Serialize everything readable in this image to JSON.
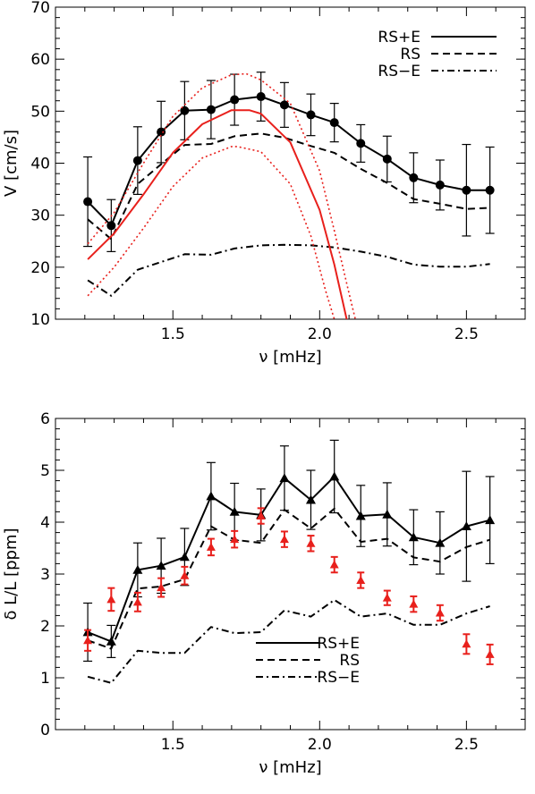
{
  "chart_data": [
    {
      "type": "line",
      "xlabel": "ν [mHz]",
      "ylabel": "V [cm/s]",
      "xlim": [
        1.1,
        2.7
      ],
      "ylim": [
        10,
        70
      ],
      "xticks": [
        "1.5",
        "2.0",
        "2.5"
      ],
      "yticks": [
        "10",
        "20",
        "30",
        "40",
        "50",
        "60",
        "70"
      ],
      "legend": {
        "placement": "top-right",
        "entries": [
          "RS+E",
          "RS",
          "RS−E"
        ]
      },
      "series": [
        {
          "name": "RS+E",
          "style": "solid",
          "marker": "circle",
          "color": "#000000",
          "x": [
            1.21,
            1.29,
            1.38,
            1.46,
            1.54,
            1.63,
            1.71,
            1.8,
            1.88,
            1.97,
            2.05,
            2.14,
            2.23,
            2.32,
            2.41,
            2.5,
            2.58
          ],
          "y": [
            32.6,
            28.0,
            40.5,
            46.0,
            50.1,
            50.3,
            52.2,
            52.8,
            51.2,
            49.3,
            47.8,
            43.8,
            40.8,
            37.2,
            35.8,
            34.8,
            34.8
          ],
          "err": [
            8.6,
            5.0,
            6.5,
            5.9,
            5.6,
            5.6,
            4.9,
            4.7,
            4.3,
            4.0,
            3.7,
            3.6,
            4.4,
            4.8,
            4.8,
            8.8,
            8.3
          ]
        },
        {
          "name": "RS",
          "style": "dashed",
          "color": "#000000",
          "x": [
            1.21,
            1.29,
            1.38,
            1.46,
            1.54,
            1.63,
            1.71,
            1.8,
            1.88,
            1.97,
            2.05,
            2.14,
            2.23,
            2.32,
            2.41,
            2.5,
            2.58
          ],
          "y": [
            29.2,
            25.4,
            36.0,
            39.8,
            43.5,
            43.7,
            45.2,
            45.7,
            44.9,
            43.3,
            42.0,
            38.9,
            36.2,
            33.1,
            32.2,
            31.2,
            31.4
          ]
        },
        {
          "name": "RS−E",
          "style": "dashdot",
          "color": "#000000",
          "x": [
            1.21,
            1.29,
            1.38,
            1.46,
            1.54,
            1.63,
            1.71,
            1.8,
            1.88,
            1.97,
            2.05,
            2.14,
            2.23,
            2.32,
            2.41,
            2.5,
            2.58
          ],
          "y": [
            17.5,
            14.5,
            19.5,
            21.0,
            22.5,
            22.4,
            23.6,
            24.2,
            24.3,
            24.2,
            23.8,
            23.0,
            22.0,
            20.5,
            20.1,
            20.1,
            20.6
          ]
        },
        {
          "style": "solid",
          "color": "#e8201c",
          "x": [
            1.21,
            1.3,
            1.4,
            1.5,
            1.6,
            1.7,
            1.76,
            1.8,
            1.9,
            2.0,
            2.05,
            2.08,
            2.1
          ],
          "y": [
            21.5,
            26.5,
            34.0,
            42.0,
            47.5,
            50.2,
            50.2,
            49.5,
            44.0,
            31.0,
            20.5,
            13.0,
            8.0
          ]
        },
        {
          "style": "dotted",
          "color": "#e8201c",
          "x": [
            1.21,
            1.3,
            1.4,
            1.5,
            1.6,
            1.7,
            1.75,
            1.8,
            1.9,
            2.0,
            2.05,
            2.1,
            2.13
          ],
          "y": [
            24.5,
            30.5,
            40.0,
            49.0,
            54.5,
            57.0,
            57.2,
            56.0,
            51.5,
            38.5,
            27.0,
            15.0,
            8.0
          ]
        },
        {
          "style": "dotted",
          "color": "#e8201c",
          "x": [
            1.21,
            1.3,
            1.4,
            1.5,
            1.6,
            1.7,
            1.72,
            1.8,
            1.9,
            1.97,
            2.02,
            2.05,
            2.08
          ],
          "y": [
            14.5,
            20.0,
            27.5,
            35.5,
            41.0,
            43.2,
            43.2,
            42.2,
            36.0,
            26.0,
            15.5,
            10.0,
            5.0
          ]
        }
      ]
    },
    {
      "type": "line",
      "xlabel": "ν [mHz]",
      "ylabel": "δ L/L [ppm]",
      "xlim": [
        1.1,
        2.7
      ],
      "ylim": [
        0,
        6
      ],
      "xticks": [
        "1.5",
        "2.0",
        "2.5"
      ],
      "yticks": [
        "0",
        "1",
        "2",
        "3",
        "4",
        "5",
        "6"
      ],
      "legend": {
        "placement": "bottom-center",
        "entries": [
          "RS+E",
          "RS",
          "RS−E"
        ]
      },
      "series": [
        {
          "name": "RS+E",
          "style": "solid",
          "marker": "triangle",
          "color": "#000000",
          "x": [
            1.21,
            1.29,
            1.38,
            1.46,
            1.54,
            1.63,
            1.71,
            1.8,
            1.88,
            1.97,
            2.05,
            2.14,
            2.23,
            2.32,
            2.41,
            2.5,
            2.58
          ],
          "y": [
            1.88,
            1.7,
            3.08,
            3.16,
            3.33,
            4.5,
            4.2,
            4.14,
            4.85,
            4.43,
            4.88,
            4.12,
            4.15,
            3.71,
            3.6,
            3.92,
            4.04
          ],
          "err": [
            0.56,
            0.31,
            0.52,
            0.53,
            0.55,
            0.65,
            0.55,
            0.5,
            0.62,
            0.57,
            0.7,
            0.59,
            0.61,
            0.53,
            0.6,
            1.06,
            0.84
          ]
        },
        {
          "name": "RS",
          "style": "dashed",
          "color": "#000000",
          "x": [
            1.21,
            1.29,
            1.38,
            1.46,
            1.54,
            1.63,
            1.71,
            1.8,
            1.88,
            1.97,
            2.05,
            2.14,
            2.23,
            2.32,
            2.41,
            2.5,
            2.58
          ],
          "y": [
            1.72,
            1.56,
            2.72,
            2.76,
            2.9,
            3.92,
            3.66,
            3.6,
            4.24,
            3.88,
            4.26,
            3.62,
            3.68,
            3.32,
            3.24,
            3.52,
            3.66
          ]
        },
        {
          "name": "RS−E",
          "style": "dashdot",
          "color": "#000000",
          "x": [
            1.21,
            1.29,
            1.38,
            1.46,
            1.54,
            1.63,
            1.71,
            1.8,
            1.88,
            1.97,
            2.05,
            2.14,
            2.23,
            2.32,
            2.41,
            2.5,
            2.58
          ],
          "y": [
            1.02,
            0.9,
            1.52,
            1.48,
            1.48,
            1.98,
            1.86,
            1.88,
            2.3,
            2.18,
            2.5,
            2.18,
            2.24,
            2.02,
            2.02,
            2.24,
            2.38
          ]
        },
        {
          "style": "markers",
          "marker": "triangle",
          "color": "#e8201c",
          "x": [
            1.21,
            1.29,
            1.38,
            1.46,
            1.54,
            1.63,
            1.71,
            1.8,
            1.88,
            1.97,
            2.05,
            2.14,
            2.23,
            2.32,
            2.41,
            2.5,
            2.58
          ],
          "y": [
            1.72,
            2.51,
            2.46,
            2.74,
            2.97,
            3.52,
            3.67,
            4.12,
            3.67,
            3.59,
            3.18,
            2.88,
            2.54,
            2.42,
            2.25,
            1.65,
            1.45
          ],
          "err": [
            0.2,
            0.22,
            0.18,
            0.18,
            0.17,
            0.16,
            0.16,
            0.15,
            0.15,
            0.15,
            0.15,
            0.15,
            0.14,
            0.15,
            0.15,
            0.19,
            0.19
          ]
        }
      ]
    }
  ]
}
